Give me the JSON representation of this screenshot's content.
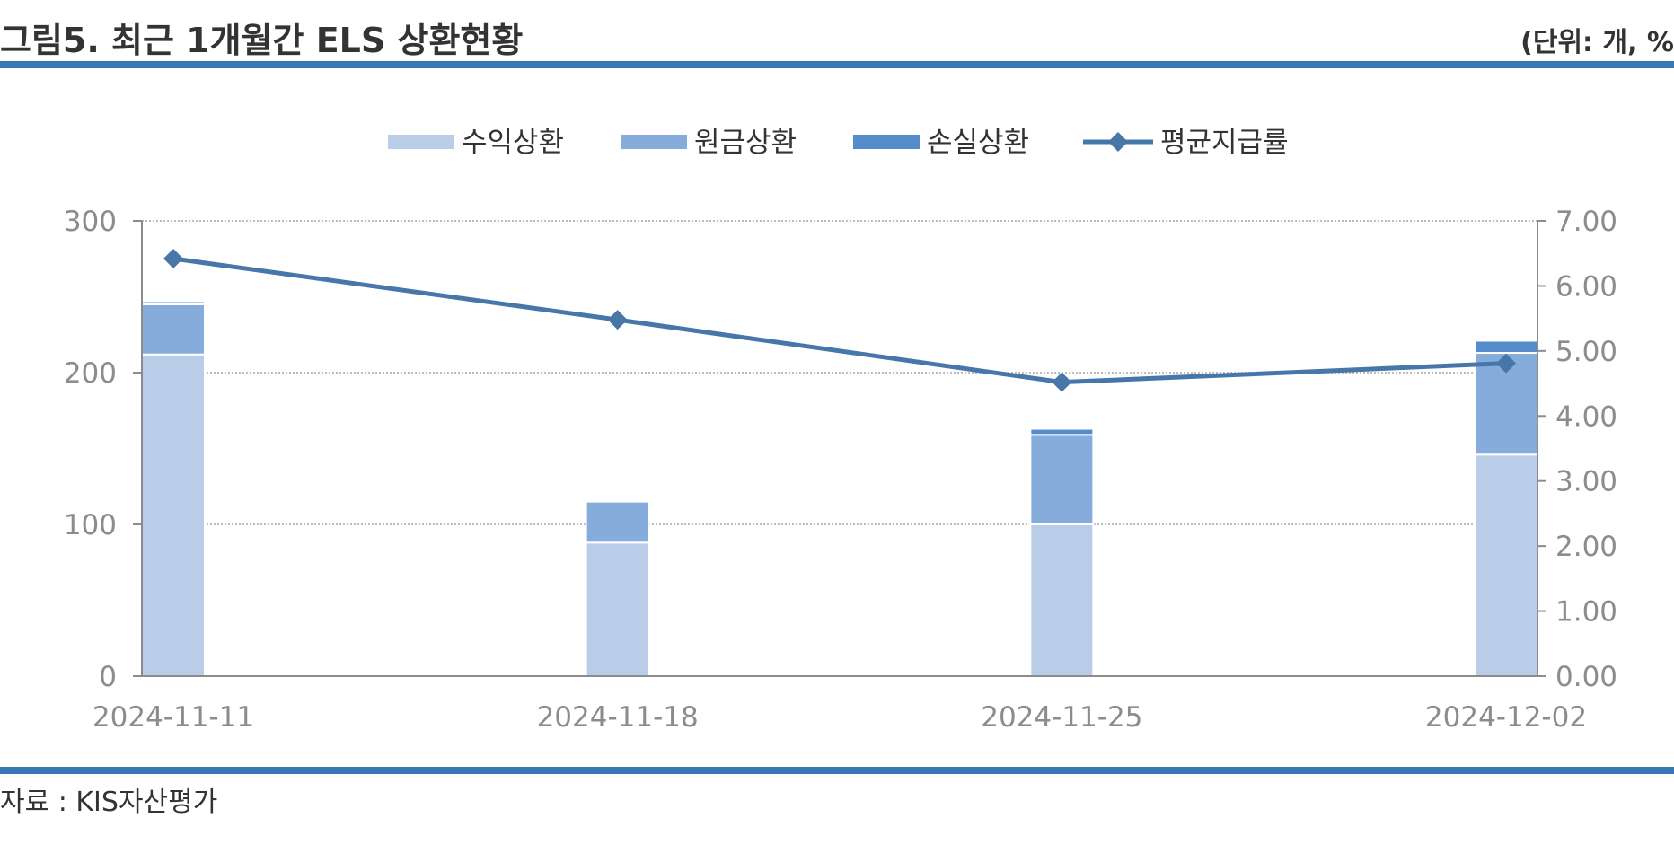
{
  "header": {
    "title": "그림5. 최근 1개월간 ELS 상환현황",
    "unit": "(단위: 개, %"
  },
  "footer": {
    "source": "자료 : KIS자산평가"
  },
  "colors": {
    "profit_redemption": "#b9cde9",
    "principal_redemption": "#86acdb",
    "loss_redemption": "#548ccc",
    "avg_payout_line": "#4677a8",
    "rule": "#3a78b5",
    "grid": "#a6a6a6",
    "axis": "#8c8c8c"
  },
  "chart_data": {
    "type": "bar",
    "stacked": true,
    "categories": [
      "2024-11-11",
      "2024-11-18",
      "2024-11-25",
      "2024-12-02"
    ],
    "series": [
      {
        "name": "수익상환",
        "type": "bar",
        "axis": "left",
        "values": [
          212,
          88,
          100,
          146
        ]
      },
      {
        "name": "원금상환",
        "type": "bar",
        "axis": "left",
        "values": [
          33,
          27,
          59,
          67
        ]
      },
      {
        "name": "손실상환",
        "type": "bar",
        "axis": "left",
        "values": [
          2,
          0,
          4,
          8
        ]
      },
      {
        "name": "평균지급률",
        "type": "line",
        "axis": "right",
        "values": [
          6.42,
          5.48,
          4.52,
          4.81
        ]
      }
    ],
    "ylim_left": [
      0,
      300
    ],
    "ylim_right": [
      0,
      7
    ],
    "yticks_left": [
      "0",
      "100",
      "200",
      "300"
    ],
    "yticks_right": [
      "0.00",
      "1.00",
      "2.00",
      "3.00",
      "4.00",
      "5.00",
      "6.00",
      "7.00"
    ],
    "grid": true,
    "legend_position": "top"
  }
}
